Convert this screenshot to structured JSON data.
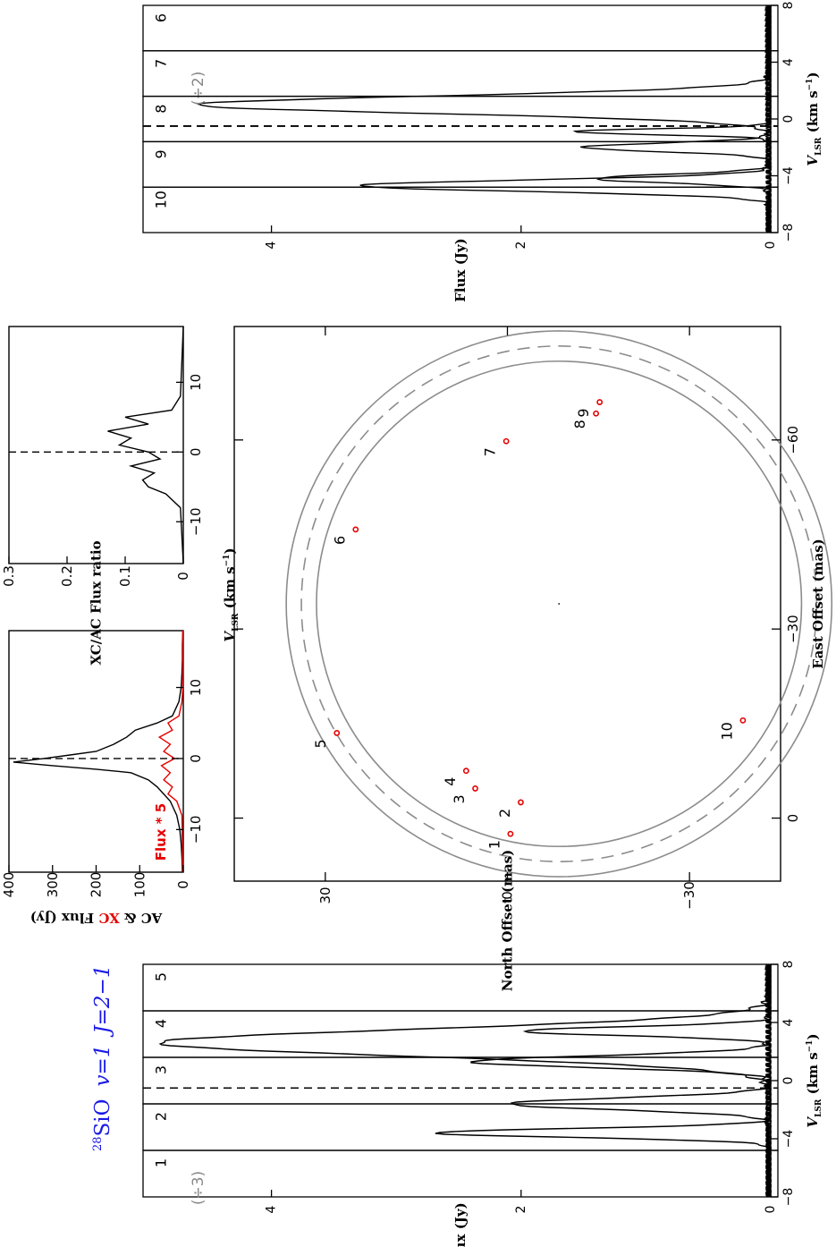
{
  "title": {
    "mol": "SiO",
    "iso": "28",
    "v": "v=1",
    "J": "J=2−1"
  },
  "colors": {
    "title": "#1a1ae6",
    "xc": "#e60000",
    "ring": "#8c8c8c",
    "ink": "#000000"
  },
  "map": {
    "xlabel": "East Offset (mas)",
    "ylabel": "North Offset (mas)",
    "xticks": [
      "0",
      "−30",
      "−60"
    ],
    "yticks": [
      "30",
      "0",
      "−30"
    ],
    "xlim": [
      10,
      -78
    ],
    "ylim": [
      -45,
      45
    ],
    "center": [
      -34,
      -8.5
    ],
    "rings_mas": [
      38.5,
      40.9,
      43.3
    ],
    "features": [
      {
        "id": "1",
        "x": 2.5,
        "y": -0.5
      },
      {
        "id": "2",
        "x": -2.5,
        "y": -2.2
      },
      {
        "id": "3",
        "x": -4.7,
        "y": 5.3
      },
      {
        "id": "4",
        "x": -7.5,
        "y": 6.8
      },
      {
        "id": "5",
        "x": -13.5,
        "y": 28.1
      },
      {
        "id": "6",
        "x": -45.8,
        "y": 25.0
      },
      {
        "id": "7",
        "x": -59.8,
        "y": 0.2
      },
      {
        "id": "8",
        "x": -64.2,
        "y": -14.6
      },
      {
        "id": "9",
        "x": -66.0,
        "y": -15.2
      },
      {
        "id": "10",
        "x": -15.5,
        "y": -38.8
      }
    ]
  },
  "flux_panel": {
    "ylabel_pre": "AC & ",
    "ylabel_xc": "XC",
    "ylabel_post": " Flux (Jy)",
    "yticks": [
      "0",
      "100",
      "200",
      "300",
      "400"
    ],
    "xticks": [
      "−10",
      "0",
      "10"
    ],
    "xlim": [
      -16,
      18
    ],
    "ylim": [
      0,
      400
    ],
    "note": "Flux * 5"
  },
  "ratio_panel": {
    "ylabel": "XC/AC Flux ratio",
    "yticks": [
      "0",
      "0.1",
      "0.2",
      "0.3"
    ],
    "xticks": [
      "−10",
      "0",
      "10"
    ],
    "xlim": [
      -16,
      18
    ],
    "ylim": [
      0,
      0.3
    ]
  },
  "vlsr_label": {
    "v": "V",
    "sub": "LSR",
    "unit": " (km s",
    "exp": "−1",
    "close": ")"
  },
  "spectra_axis": {
    "vel_ticks": [
      "−8",
      "−4",
      "0",
      "4",
      "8"
    ],
    "flux_ticks": [
      "0",
      "2",
      "4"
    ],
    "flux_label": "Flux (Jy)",
    "vlim": [
      -8,
      8
    ],
    "flim": [
      0,
      5
    ],
    "dashed_at": -0.5
  },
  "chart_data": [
    {
      "type": "scatter",
      "title": "",
      "xlabel": "East Offset (mas)",
      "ylabel": "North Offset (mas)",
      "xlim": [
        10,
        -78
      ],
      "ylim": [
        -45,
        45
      ],
      "series": [
        {
          "x": [
            2.5,
            -2.5,
            -4.7,
            -7.5,
            -13.5,
            -45.8,
            -59.8,
            -64.2,
            -66.0,
            -15.5
          ],
          "y": [
            -0.5,
            -2.2,
            5.3,
            6.8,
            28.1,
            25.0,
            0.2,
            -14.6,
            -15.2,
            -38.8
          ],
          "labels": [
            "1",
            "2",
            "3",
            "4",
            "5",
            "6",
            "7",
            "8",
            "9",
            "10"
          ]
        }
      ]
    },
    {
      "type": "line",
      "xlabel": "V_LSR (km s^-1)",
      "ylabel": "AC & XC Flux (Jy)",
      "xlim": [
        -16,
        18
      ],
      "ylim": [
        0,
        400
      ],
      "annotation": "Flux * 5",
      "series": [
        {
          "name": "AC",
          "x": [
            -16,
            -14,
            -12,
            -10,
            -8,
            -6,
            -5,
            -4,
            -3,
            -2,
            -1.5,
            -1,
            -0.5,
            0,
            0.5,
            1,
            2,
            3,
            4,
            5,
            6,
            8,
            10,
            12,
            14,
            16,
            18
          ],
          "y": [
            2,
            3,
            5,
            8,
            15,
            30,
            45,
            60,
            80,
            120,
            200,
            300,
            390,
            320,
            260,
            200,
            160,
            130,
            110,
            60,
            25,
            10,
            5,
            3,
            2,
            2,
            1
          ]
        },
        {
          "name": "XC",
          "x": [
            -16,
            -8,
            -6,
            -5,
            -4,
            -3,
            -2,
            -1,
            0,
            1,
            2,
            3,
            4,
            5,
            6,
            8,
            10,
            18
          ],
          "y": [
            1,
            3,
            15,
            35,
            25,
            45,
            30,
            50,
            20,
            45,
            30,
            55,
            25,
            35,
            10,
            3,
            1,
            1
          ]
        }
      ]
    },
    {
      "type": "line",
      "xlabel": "V_LSR (km s^-1)",
      "ylabel": "XC/AC Flux ratio",
      "xlim": [
        -16,
        18
      ],
      "ylim": [
        0,
        0.3
      ],
      "series": [
        {
          "x": [
            -16,
            -8,
            -6,
            -5,
            -4,
            -3,
            -2,
            -1,
            0,
            1,
            2,
            3,
            4,
            5,
            6,
            8,
            18
          ],
          "y": [
            0,
            0.005,
            0.03,
            0.06,
            0.07,
            0.05,
            0.09,
            0.04,
            0.06,
            0.11,
            0.09,
            0.13,
            0.06,
            0.1,
            0.02,
            0.005,
            0
          ]
        }
      ]
    },
    {
      "type": "line",
      "xlabel": "V_LSR (km s^-1)",
      "ylabel": "Flux (Jy)",
      "xlim": [
        -8,
        8
      ],
      "ylim": [
        0,
        5
      ],
      "spectra": [
        {
          "id": "1",
          "scale": "(÷3)",
          "peak_v": 2.6,
          "peak": 4.9,
          "width": 0.9
        },
        {
          "id": "2",
          "peak_v": 3.4,
          "peak": 2.0,
          "width": 0.3
        },
        {
          "id": "3",
          "peak_v": -3.6,
          "peak": 2.7,
          "width": 0.3
        },
        {
          "id": "4",
          "peak_v": -1.6,
          "peak": 2.1,
          "width": 0.4
        },
        {
          "id": "5",
          "peak_v": 1.3,
          "peak": 2.4,
          "width": 0.4
        },
        {
          "id": "6",
          "peak_v": -4.2,
          "peak": 1.4,
          "width": 0.3
        },
        {
          "id": "7",
          "scale": "(÷2)",
          "peak_v": 1.0,
          "peak": 4.6,
          "width": 0.6
        },
        {
          "id": "8",
          "peak_v": -0.9,
          "peak": 1.6,
          "width": 0.2
        },
        {
          "id": "9",
          "peak_v": -2.0,
          "peak": 1.5,
          "width": 0.3
        },
        {
          "id": "10",
          "peak_v": -4.7,
          "peak": 3.3,
          "width": 0.4
        }
      ]
    }
  ]
}
